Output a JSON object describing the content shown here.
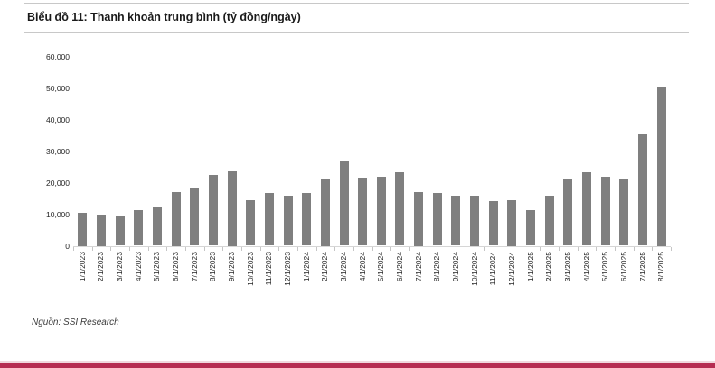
{
  "header": {
    "title": "Biểu đồ 11: Thanh khoản trung bình (tỷ đồng/ngày)"
  },
  "footer": {
    "source": "Nguồn: SSI Research"
  },
  "colors": {
    "bar": "#7f7f7f",
    "accent_bar": "#b62d52",
    "rule": "#c8c8c8",
    "axis_text": "#262626"
  },
  "chart_data": {
    "type": "bar",
    "title": "Biểu đồ 11: Thanh khoản trung bình (tỷ đồng/ngày)",
    "xlabel": "",
    "ylabel": "tỷ đồng/ngày",
    "ylim": [
      0,
      60000
    ],
    "yticks": [
      0,
      10000,
      20000,
      30000,
      40000,
      50000,
      60000
    ],
    "grid": false,
    "legend": false,
    "bar_color": "#7f7f7f",
    "categories": [
      "1/1/2023",
      "2/1/2023",
      "3/1/2023",
      "4/1/2023",
      "5/1/2023",
      "6/1/2023",
      "7/1/2023",
      "8/1/2023",
      "9/1/2023",
      "10/1/2023",
      "11/1/2023",
      "12/1/2023",
      "1/1/2024",
      "2/1/2024",
      "3/1/2024",
      "4/1/2024",
      "5/1/2024",
      "6/1/2024",
      "7/1/2024",
      "8/1/2024",
      "9/1/2024",
      "10/1/2024",
      "11/1/2024",
      "12/1/2024",
      "1/1/2025",
      "2/1/2025",
      "3/1/2025",
      "4/1/2025",
      "5/1/2025",
      "6/1/2025",
      "7/1/2025",
      "8/1/2025"
    ],
    "values": [
      10500,
      10000,
      9200,
      11300,
      12200,
      17000,
      18300,
      22300,
      23500,
      14400,
      16800,
      15900,
      16700,
      21000,
      26900,
      21700,
      21900,
      23400,
      17000,
      16600,
      15900,
      16000,
      14200,
      14500,
      11300,
      15900,
      20900,
      23400,
      21800,
      21100,
      35400,
      50500
    ]
  }
}
